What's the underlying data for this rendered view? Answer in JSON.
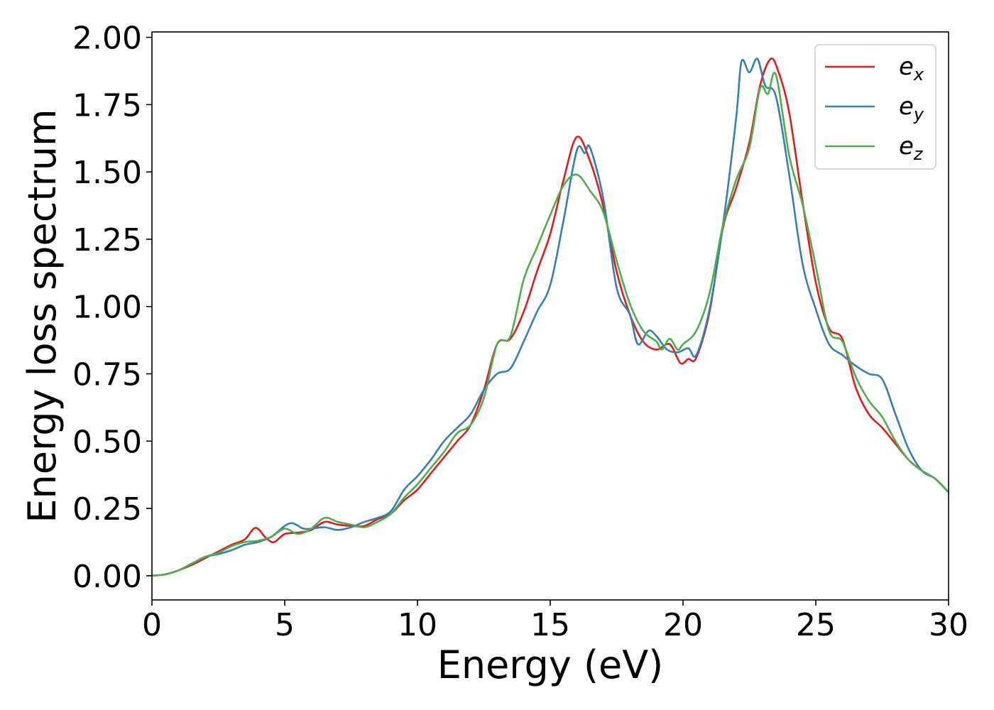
{
  "chart_data": {
    "type": "line",
    "xlabel": "Energy (eV)",
    "ylabel": "Energy loss spectrum",
    "xlim": [
      0,
      30
    ],
    "ylim": [
      -0.09,
      2.02
    ],
    "xticks": [
      0,
      5,
      10,
      15,
      20,
      25,
      30
    ],
    "xtick_labels": [
      "0",
      "5",
      "10",
      "15",
      "20",
      "25",
      "30"
    ],
    "yticks": [
      0.0,
      0.25,
      0.5,
      0.75,
      1.0,
      1.25,
      1.5,
      1.75,
      2.0
    ],
    "ytick_labels": [
      "0.00",
      "0.25",
      "0.50",
      "0.75",
      "1.00",
      "1.25",
      "1.50",
      "1.75",
      "2.00"
    ],
    "grid": false,
    "legend_position": "top-right",
    "series": [
      {
        "name": "e_x",
        "legend_base": "e",
        "legend_sub": "x",
        "color": "#e41a1c",
        "x": [
          0,
          0.5,
          1,
          1.5,
          2,
          2.5,
          3,
          3.5,
          3.9,
          4.3,
          4.6,
          5,
          5.5,
          6,
          6.5,
          7,
          7.5,
          8,
          8.5,
          9,
          9.5,
          10,
          10.5,
          11,
          11.5,
          12,
          12.5,
          13,
          13.5,
          14,
          14.5,
          15,
          15.5,
          16,
          16.5,
          17,
          17.5,
          18,
          18.5,
          19,
          19.5,
          19.9,
          20.2,
          20.5,
          21,
          21.5,
          22,
          22.5,
          22.9,
          23.3,
          23.6,
          24,
          24.5,
          25,
          25.5,
          26,
          26.5,
          27,
          27.5,
          28,
          28.5,
          29,
          29.5,
          30
        ],
        "y": [
          0,
          0.005,
          0.02,
          0.04,
          0.065,
          0.09,
          0.115,
          0.135,
          0.178,
          0.14,
          0.125,
          0.155,
          0.16,
          0.17,
          0.2,
          0.19,
          0.185,
          0.185,
          0.21,
          0.23,
          0.28,
          0.32,
          0.38,
          0.44,
          0.5,
          0.56,
          0.69,
          0.86,
          0.88,
          0.98,
          1.13,
          1.27,
          1.47,
          1.63,
          1.54,
          1.37,
          1.13,
          0.97,
          0.87,
          0.84,
          0.86,
          0.79,
          0.805,
          0.81,
          0.98,
          1.29,
          1.44,
          1.61,
          1.82,
          1.92,
          1.87,
          1.72,
          1.39,
          1.09,
          0.92,
          0.88,
          0.7,
          0.6,
          0.55,
          0.49,
          0.43,
          0.39,
          0.36,
          0.31
        ]
      },
      {
        "name": "e_y",
        "legend_base": "e",
        "legend_sub": "y",
        "color": "#377eb8",
        "x": [
          0,
          0.5,
          1,
          1.5,
          2,
          2.5,
          3,
          3.5,
          4,
          4.5,
          5,
          5.3,
          5.7,
          6,
          6.5,
          7,
          7.5,
          8,
          8.5,
          9,
          9.5,
          10,
          10.5,
          11,
          11.5,
          12,
          12.5,
          13,
          13.5,
          14,
          14.5,
          15,
          15.5,
          16,
          16.3,
          16.5,
          17,
          17.5,
          18,
          18.3,
          18.7,
          19,
          19.4,
          19.8,
          20.2,
          20.5,
          21,
          21.5,
          22,
          22.2,
          22.5,
          22.8,
          23.1,
          23.5,
          24,
          24.5,
          25,
          25.5,
          26,
          26.5,
          27,
          27.5,
          28,
          28.5,
          29,
          29.5,
          30
        ],
        "y": [
          0,
          0.005,
          0.02,
          0.045,
          0.07,
          0.08,
          0.095,
          0.115,
          0.125,
          0.145,
          0.185,
          0.195,
          0.175,
          0.175,
          0.18,
          0.17,
          0.18,
          0.2,
          0.215,
          0.24,
          0.32,
          0.37,
          0.43,
          0.5,
          0.55,
          0.6,
          0.69,
          0.75,
          0.77,
          0.87,
          0.98,
          1.08,
          1.32,
          1.58,
          1.57,
          1.59,
          1.4,
          1.07,
          0.97,
          0.86,
          0.91,
          0.89,
          0.84,
          0.83,
          0.845,
          0.82,
          0.99,
          1.3,
          1.7,
          1.91,
          1.87,
          1.92,
          1.82,
          1.78,
          1.49,
          1.16,
          0.99,
          0.86,
          0.82,
          0.78,
          0.75,
          0.73,
          0.6,
          0.47,
          0.39,
          0.36,
          0.31
        ]
      },
      {
        "name": "e_z",
        "legend_base": "e",
        "legend_sub": "z",
        "color": "#4daf4a",
        "x": [
          0,
          0.5,
          1,
          1.5,
          2,
          2.5,
          3,
          3.5,
          4,
          4.5,
          5,
          5.5,
          6,
          6.5,
          7,
          7.5,
          8,
          8.5,
          9,
          9.5,
          10,
          10.5,
          11,
          11.5,
          12,
          12.5,
          13,
          13.5,
          14,
          14.5,
          15,
          15.5,
          16,
          16.5,
          17,
          17.5,
          18,
          18.5,
          19,
          19.2,
          19.5,
          19.8,
          20,
          20.5,
          21,
          21.5,
          22,
          22.5,
          22.9,
          23.2,
          23.5,
          24,
          24.5,
          25,
          25.5,
          26,
          26.5,
          27,
          27.5,
          28,
          28.5,
          29,
          29.5,
          30
        ],
        "y": [
          0,
          0.005,
          0.02,
          0.045,
          0.07,
          0.085,
          0.11,
          0.125,
          0.13,
          0.145,
          0.175,
          0.155,
          0.175,
          0.215,
          0.2,
          0.19,
          0.18,
          0.2,
          0.23,
          0.29,
          0.34,
          0.4,
          0.46,
          0.53,
          0.56,
          0.66,
          0.86,
          0.89,
          1.1,
          1.22,
          1.34,
          1.45,
          1.49,
          1.43,
          1.35,
          1.17,
          1.01,
          0.91,
          0.87,
          0.84,
          0.88,
          0.84,
          0.86,
          0.91,
          1.05,
          1.3,
          1.47,
          1.59,
          1.81,
          1.79,
          1.86,
          1.56,
          1.38,
          1.15,
          0.91,
          0.87,
          0.74,
          0.65,
          0.59,
          0.5,
          0.43,
          0.39,
          0.36,
          0.31
        ]
      }
    ]
  }
}
